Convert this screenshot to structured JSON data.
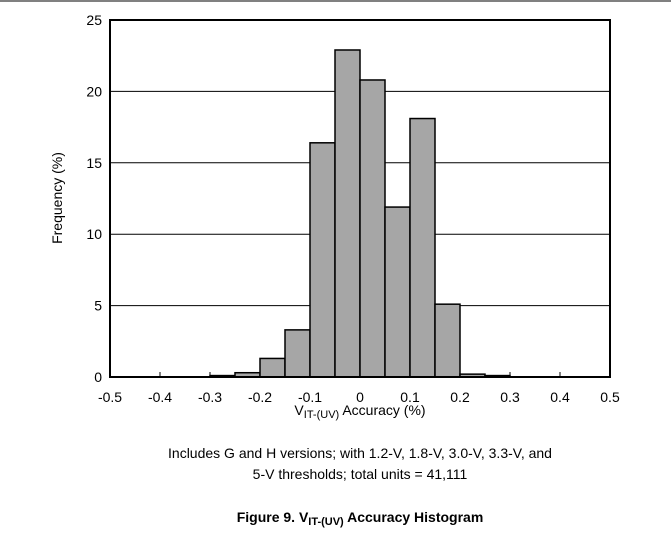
{
  "chart_data": {
    "type": "histogram",
    "x_label": {
      "main": "V",
      "sub": "IT-(UV)",
      "rest": " Accuracy (%)"
    },
    "y_label": "Frequency (%)",
    "note": [
      "Includes G and H versions; with 1.2-V, 1.8-V, 3.0-V, 3.3-V, and",
      "5-V thresholds; total units = 41,111"
    ],
    "caption": {
      "main": "Figure 9. V",
      "sub": "IT-(UV)",
      "rest": " Accuracy Histogram"
    },
    "bins": [
      -0.3,
      -0.25,
      -0.2,
      -0.15,
      -0.1,
      -0.05,
      0,
      0.05,
      0.1,
      0.15,
      0.2,
      0.25,
      0.3
    ],
    "values": [
      0.1,
      0.3,
      1.3,
      3.3,
      16.4,
      22.9,
      20.8,
      11.9,
      18.1,
      5.1,
      0.2,
      0.1
    ],
    "color": "#a6a6a6",
    "xlim": [
      -0.5,
      0.5
    ],
    "xticks": [
      -0.5,
      -0.4,
      -0.3,
      -0.2,
      -0.1,
      0,
      0.1,
      0.2,
      0.3,
      0.4,
      0.5
    ],
    "ylim": [
      0,
      25
    ],
    "yticks": [
      0,
      5,
      10,
      15,
      20,
      25
    ],
    "grid": true
  }
}
